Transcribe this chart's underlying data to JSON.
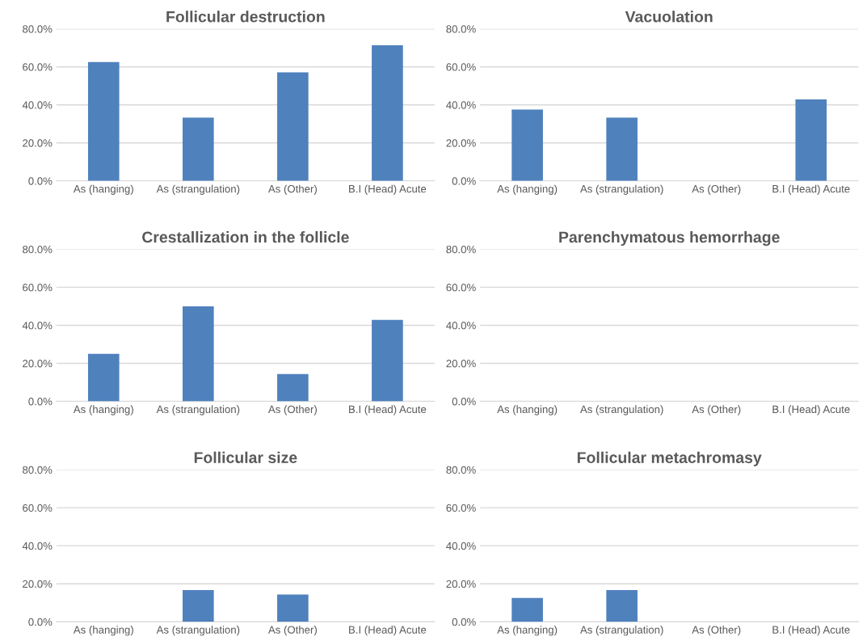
{
  "chart_data": [
    {
      "type": "bar",
      "title": "Follicular destruction",
      "categories": [
        "As (hanging)",
        "As (strangulation)",
        "As (Other)",
        "B.I (Head) Acute"
      ],
      "values": [
        62.5,
        33.3,
        57.1,
        71.4
      ],
      "color": "#4f81bd",
      "ylim": [
        0,
        80
      ],
      "yticks": [
        {
          "value": 0,
          "label": "0.0%"
        },
        {
          "value": 20,
          "label": "20.0%"
        },
        {
          "value": 40,
          "label": "40.0%"
        },
        {
          "value": 60,
          "label": "60.0%"
        },
        {
          "value": 80,
          "label": "80.0%"
        }
      ],
      "grid": "y",
      "legend": false
    },
    {
      "type": "bar",
      "title": "Vacuolation",
      "categories": [
        "As (hanging)",
        "As (strangulation)",
        "As (Other)",
        "B.I (Head) Acute"
      ],
      "values": [
        37.5,
        33.3,
        0,
        42.9
      ],
      "color": "#4f81bd",
      "ylim": [
        0,
        80
      ],
      "yticks": [
        {
          "value": 0,
          "label": "0.0%"
        },
        {
          "value": 20,
          "label": "20.0%"
        },
        {
          "value": 40,
          "label": "40.0%"
        },
        {
          "value": 60,
          "label": "60.0%"
        },
        {
          "value": 80,
          "label": "80.0%"
        }
      ],
      "grid": "y",
      "legend": false
    },
    {
      "type": "bar",
      "title": "Crestallization in the follicle",
      "categories": [
        "As (hanging)",
        "As (strangulation)",
        "As (Other)",
        "B.I (Head) Acute"
      ],
      "values": [
        25,
        50,
        14.3,
        42.9
      ],
      "color": "#4f81bd",
      "ylim": [
        0,
        80
      ],
      "yticks": [
        {
          "value": 0,
          "label": "0.0%"
        },
        {
          "value": 20,
          "label": "20.0%"
        },
        {
          "value": 40,
          "label": "40.0%"
        },
        {
          "value": 60,
          "label": "60.0%"
        },
        {
          "value": 80,
          "label": "80.0%"
        }
      ],
      "grid": "y",
      "legend": false
    },
    {
      "type": "bar",
      "title": "Parenchymatous hemorrhage",
      "categories": [
        "As (hanging)",
        "As (strangulation)",
        "As (Other)",
        "B.I (Head) Acute"
      ],
      "values": [
        0,
        0,
        0,
        0
      ],
      "color": "#4f81bd",
      "ylim": [
        0,
        80
      ],
      "yticks": [
        {
          "value": 0,
          "label": "0.0%"
        },
        {
          "value": 20,
          "label": "20.0%"
        },
        {
          "value": 40,
          "label": "40.0%"
        },
        {
          "value": 60,
          "label": "60.0%"
        },
        {
          "value": 80,
          "label": "80.0%"
        }
      ],
      "grid": "y",
      "legend": false
    },
    {
      "type": "bar",
      "title": "Follicular size",
      "categories": [
        "As (hanging)",
        "As (strangulation)",
        "As (Other)",
        "B.I (Head) Acute"
      ],
      "values": [
        0,
        16.7,
        14.3,
        0
      ],
      "color": "#4f81bd",
      "ylim": [
        0,
        80
      ],
      "yticks": [
        {
          "value": 0,
          "label": "0.0%"
        },
        {
          "value": 20,
          "label": "20.0%"
        },
        {
          "value": 40,
          "label": "40.0%"
        },
        {
          "value": 60,
          "label": "60.0%"
        },
        {
          "value": 80,
          "label": "80.0%"
        }
      ],
      "grid": "y",
      "legend": false
    },
    {
      "type": "bar",
      "title": "Follicular metachromasy",
      "categories": [
        "As (hanging)",
        "As (strangulation)",
        "As (Other)",
        "B.I (Head) Acute"
      ],
      "values": [
        12.5,
        16.7,
        0,
        0
      ],
      "color": "#4f81bd",
      "ylim": [
        0,
        80
      ],
      "yticks": [
        {
          "value": 0,
          "label": "0.0%"
        },
        {
          "value": 20,
          "label": "20.0%"
        },
        {
          "value": 40,
          "label": "40.0%"
        },
        {
          "value": 60,
          "label": "60.0%"
        },
        {
          "value": 80,
          "label": "80.0%"
        }
      ],
      "grid": "y",
      "legend": false
    }
  ]
}
